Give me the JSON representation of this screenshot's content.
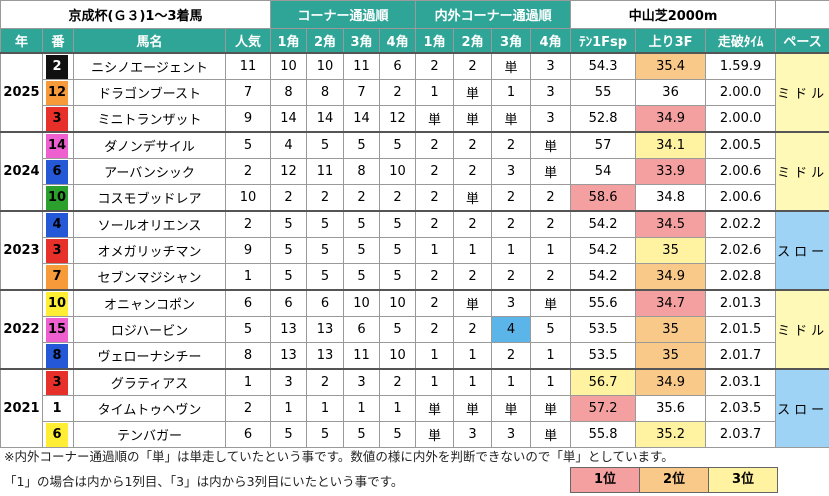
{
  "header": {
    "title": "京成杯(Ｇ３)1～3着馬",
    "corner_group": "コーナー通過順",
    "inout_group": "内外コーナー通過順",
    "course": "中山芝2000m"
  },
  "columns": [
    "年",
    "番",
    "馬名",
    "人気",
    "1角",
    "2角",
    "3角",
    "4角",
    "1角",
    "2角",
    "3角",
    "4角",
    "ﾃﾝ1Fsp",
    "上り3F",
    "走破ﾀｲﾑ",
    "ペース"
  ],
  "years": [
    {
      "year": "2025",
      "pace": "ミドル",
      "pace_bg": "#fff9b8",
      "rows": [
        {
          "gate": 2,
          "gate_bg": "#111111",
          "gate_fg": "#ffffff",
          "horse": "ニシノエージェント",
          "pop": 11,
          "corners": [
            10,
            10,
            11,
            6
          ],
          "inout": [
            "2",
            "2",
            "単",
            "3"
          ],
          "ten": 54.3,
          "agari": 35.4,
          "agari_bg": "#f9c98a",
          "time": "1.59.9"
        },
        {
          "gate": 12,
          "gate_bg": "#f79a3a",
          "gate_fg": "#000000",
          "horse": "ドラゴンブースト",
          "pop": 7,
          "corners": [
            8,
            8,
            7,
            2
          ],
          "inout": [
            "1",
            "単",
            "1",
            "3"
          ],
          "ten": 55,
          "agari": 36,
          "time": "2.00.0"
        },
        {
          "gate": 3,
          "gate_bg": "#e8302a",
          "gate_fg": "#000000",
          "horse": "ミニトランザット",
          "pop": 9,
          "corners": [
            14,
            14,
            14,
            12
          ],
          "inout": [
            "単",
            "単",
            "単",
            "3"
          ],
          "ten": 52.8,
          "agari": 34.9,
          "agari_bg": "#f4a0a0",
          "time": "2.00.0"
        }
      ]
    },
    {
      "year": "2024",
      "pace": "ミドル",
      "pace_bg": "#fff9b8",
      "rows": [
        {
          "gate": 14,
          "gate_bg": "#ee5fd0",
          "gate_fg": "#000000",
          "horse": "ダノンデサイル",
          "pop": 5,
          "corners": [
            4,
            5,
            5,
            5
          ],
          "inout": [
            "2",
            "2",
            "2",
            "単"
          ],
          "ten": 57,
          "agari": 34.1,
          "agari_bg": "#fff2a0",
          "time": "2.00.5"
        },
        {
          "gate": 6,
          "gate_bg": "#2458d6",
          "gate_fg": "#000000",
          "horse": "アーバンシック",
          "pop": 2,
          "corners": [
            12,
            11,
            8,
            10
          ],
          "inout": [
            "2",
            "2",
            "3",
            "単"
          ],
          "ten": 54,
          "agari": 33.9,
          "agari_bg": "#f4a0a0",
          "time": "2.00.6"
        },
        {
          "gate": 10,
          "gate_bg": "#2ca02c",
          "gate_fg": "#000000",
          "horse": "コスモブッドレア",
          "pop": 10,
          "corners": [
            2,
            2,
            2,
            2
          ],
          "inout": [
            "2",
            "単",
            "2",
            "2"
          ],
          "ten": 58.6,
          "ten_bg": "#f4a0a0",
          "agari": 34.8,
          "time": "2.00.6"
        }
      ]
    },
    {
      "year": "2023",
      "pace": "スロー",
      "pace_bg": "#9fd3f5",
      "rows": [
        {
          "gate": 4,
          "gate_bg": "#2458d6",
          "gate_fg": "#000000",
          "horse": "ソールオリエンス",
          "pop": 2,
          "corners": [
            5,
            5,
            5,
            5
          ],
          "inout": [
            "2",
            "2",
            "2",
            "2"
          ],
          "ten": 54.2,
          "agari": 34.5,
          "agari_bg": "#f4a0a0",
          "time": "2.02.2"
        },
        {
          "gate": 3,
          "gate_bg": "#e8302a",
          "gate_fg": "#000000",
          "horse": "オメガリッチマン",
          "pop": 9,
          "corners": [
            5,
            5,
            5,
            5
          ],
          "inout": [
            "1",
            "1",
            "1",
            "1"
          ],
          "ten": 54.2,
          "agari": 35,
          "agari_bg": "#fff2a0",
          "time": "2.02.6"
        },
        {
          "gate": 7,
          "gate_bg": "#f79a3a",
          "gate_fg": "#000000",
          "horse": "セブンマジシャン",
          "pop": 1,
          "corners": [
            5,
            5,
            5,
            5
          ],
          "inout": [
            "2",
            "2",
            "2",
            "2"
          ],
          "ten": 54.2,
          "agari": 34.9,
          "agari_bg": "#f9c98a",
          "time": "2.02.8"
        }
      ]
    },
    {
      "year": "2022",
      "pace": "ミドル",
      "pace_bg": "#fff9b8",
      "rows": [
        {
          "gate": 10,
          "gate_bg": "#ffee33",
          "gate_fg": "#000000",
          "horse": "オニャンコポン",
          "pop": 6,
          "corners": [
            6,
            6,
            10,
            10
          ],
          "inout": [
            "2",
            "単",
            "3",
            "単"
          ],
          "ten": 55.6,
          "agari": 34.7,
          "agari_bg": "#f4a0a0",
          "time": "2.01.3"
        },
        {
          "gate": 15,
          "gate_bg": "#ee5fd0",
          "gate_fg": "#000000",
          "horse": "ロジハービン",
          "pop": 5,
          "corners": [
            13,
            13,
            6,
            5
          ],
          "inout": [
            "2",
            "2",
            "4",
            "5"
          ],
          "inout_bg": {
            "2": "#5bb5e8"
          },
          "ten": 53.5,
          "agari": 35,
          "agari_bg": "#f9c98a",
          "time": "2.01.5"
        },
        {
          "gate": 8,
          "gate_bg": "#2458d6",
          "gate_fg": "#000000",
          "horse": "ヴェローナシチー",
          "pop": 8,
          "corners": [
            13,
            13,
            11,
            10
          ],
          "inout": [
            "1",
            "1",
            "2",
            "1"
          ],
          "ten": 53.5,
          "agari": 35,
          "agari_bg": "#f9c98a",
          "time": "2.01.7"
        }
      ]
    },
    {
      "year": "2021",
      "pace": "スロー",
      "pace_bg": "#9fd3f5",
      "rows": [
        {
          "gate": 3,
          "gate_bg": "#e8302a",
          "gate_fg": "#000000",
          "horse": "グラティアス",
          "pop": 1,
          "corners": [
            3,
            2,
            3,
            2
          ],
          "inout": [
            "1",
            "1",
            "1",
            "1"
          ],
          "ten": 56.7,
          "ten_bg": "#fff2a0",
          "agari": 34.9,
          "agari_bg": "#f9c98a",
          "time": "2.03.1"
        },
        {
          "gate": 1,
          "gate_bg": "#ffffff",
          "gate_fg": "#000000",
          "horse": "タイムトゥヘヴン",
          "pop": 2,
          "corners": [
            1,
            1,
            1,
            1
          ],
          "inout": [
            "単",
            "単",
            "単",
            "単"
          ],
          "ten": 57.2,
          "ten_bg": "#f4a0a0",
          "agari": 35.6,
          "time": "2.03.5"
        },
        {
          "gate": 6,
          "gate_bg": "#ffee33",
          "gate_fg": "#000000",
          "horse": "テンバガー",
          "pop": 6,
          "corners": [
            5,
            5,
            5,
            5
          ],
          "inout": [
            "単",
            "3",
            "3",
            "単"
          ],
          "ten": 55.8,
          "agari": 35.2,
          "agari_bg": "#fff2a0",
          "time": "2.03.7"
        }
      ]
    }
  ],
  "notes": [
    "※内外コーナー通過順の「単」は単走していたという事です。数値の様に内外を判断できないので「単」としています。",
    "「1」の場合は内から1列目、「3」は内から3列目にいたという事です。"
  ],
  "legend": [
    {
      "label": "1位",
      "color": "#f4a0a0"
    },
    {
      "label": "2位",
      "color": "#f9c98a"
    },
    {
      "label": "3位",
      "color": "#fff2a0"
    }
  ]
}
